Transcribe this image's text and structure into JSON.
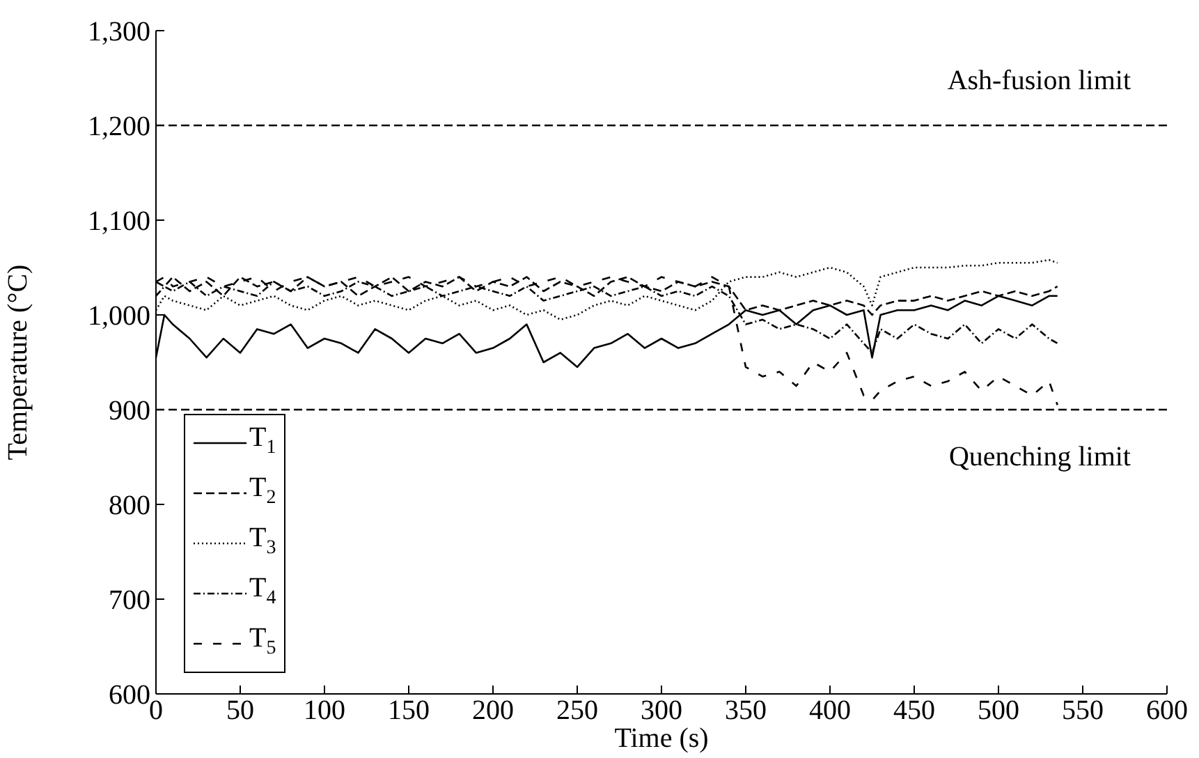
{
  "chart_data": {
    "type": "line",
    "xlabel": "Time (s)",
    "ylabel": "Temperature (°C)",
    "x": [
      0,
      5,
      10,
      20,
      30,
      40,
      50,
      60,
      70,
      80,
      90,
      100,
      110,
      120,
      130,
      140,
      150,
      160,
      170,
      180,
      190,
      200,
      210,
      220,
      230,
      240,
      250,
      260,
      270,
      280,
      290,
      300,
      310,
      320,
      330,
      340,
      350,
      360,
      370,
      380,
      390,
      400,
      410,
      420,
      425,
      430,
      440,
      450,
      460,
      470,
      480,
      490,
      500,
      510,
      520,
      530,
      535
    ],
    "series": [
      {
        "name": "T$_{1}$",
        "color": "#000000",
        "line_style": "solid",
        "values": [
          955,
          1000,
          990,
          975,
          955,
          975,
          960,
          985,
          980,
          990,
          965,
          975,
          970,
          960,
          985,
          975,
          960,
          975,
          970,
          980,
          960,
          965,
          975,
          990,
          950,
          960,
          945,
          965,
          970,
          980,
          965,
          975,
          965,
          970,
          980,
          990,
          1005,
          1000,
          1005,
          990,
          1005,
          1010,
          1000,
          1005,
          955,
          1000,
          1005,
          1005,
          1010,
          1005,
          1015,
          1010,
          1020,
          1015,
          1010,
          1020,
          1020
        ]
      },
      {
        "name": "T$_{2}$",
        "color": "#000000",
        "line_style": "dashed",
        "values": [
          1035,
          1030,
          1040,
          1025,
          1035,
          1020,
          1040,
          1030,
          1035,
          1025,
          1040,
          1030,
          1035,
          1020,
          1030,
          1040,
          1025,
          1035,
          1030,
          1040,
          1025,
          1035,
          1030,
          1040,
          1025,
          1035,
          1030,
          1020,
          1035,
          1040,
          1030,
          1025,
          1035,
          1030,
          1035,
          1030,
          1005,
          1010,
          1005,
          1010,
          1015,
          1010,
          1015,
          1010,
          1000,
          1010,
          1015,
          1015,
          1020,
          1015,
          1020,
          1025,
          1020,
          1025,
          1020,
          1025,
          1030
        ]
      },
      {
        "name": "T$_{3}$",
        "color": "#000000",
        "line_style": "dotted",
        "values": [
          1005,
          1020,
          1015,
          1010,
          1005,
          1020,
          1010,
          1015,
          1020,
          1010,
          1005,
          1015,
          1020,
          1010,
          1015,
          1010,
          1005,
          1015,
          1020,
          1010,
          1015,
          1005,
          1010,
          1000,
          1005,
          995,
          1000,
          1010,
          1015,
          1010,
          1020,
          1015,
          1010,
          1005,
          1015,
          1035,
          1040,
          1040,
          1045,
          1040,
          1045,
          1050,
          1045,
          1030,
          1010,
          1040,
          1045,
          1050,
          1050,
          1050,
          1052,
          1052,
          1055,
          1055,
          1055,
          1058,
          1055
        ]
      },
      {
        "name": "T$_{4}$",
        "color": "#000000",
        "line_style": "dashdot",
        "values": [
          1020,
          1030,
          1025,
          1035,
          1020,
          1030,
          1025,
          1020,
          1035,
          1025,
          1030,
          1020,
          1025,
          1035,
          1030,
          1020,
          1025,
          1030,
          1020,
          1025,
          1030,
          1025,
          1020,
          1030,
          1015,
          1020,
          1025,
          1030,
          1020,
          1025,
          1030,
          1020,
          1025,
          1020,
          1030,
          1020,
          990,
          995,
          985,
          990,
          985,
          975,
          990,
          970,
          960,
          985,
          975,
          990,
          980,
          975,
          990,
          970,
          985,
          975,
          990,
          975,
          970
        ]
      },
      {
        "name": "T$_{5}$",
        "color": "#000000",
        "line_style": "loosely dashed",
        "values": [
          1035,
          1040,
          1030,
          1035,
          1040,
          1030,
          1035,
          1040,
          1025,
          1035,
          1040,
          1030,
          1035,
          1040,
          1030,
          1035,
          1040,
          1030,
          1035,
          1040,
          1030,
          1035,
          1040,
          1030,
          1035,
          1040,
          1030,
          1035,
          1040,
          1035,
          1030,
          1040,
          1035,
          1030,
          1040,
          1030,
          945,
          935,
          940,
          925,
          950,
          940,
          960,
          915,
          910,
          920,
          930,
          935,
          925,
          930,
          940,
          920,
          935,
          925,
          915,
          930,
          905
        ]
      }
    ],
    "xlim": [
      0,
      600
    ],
    "xticks": [
      0,
      50,
      100,
      150,
      200,
      250,
      300,
      350,
      400,
      450,
      500,
      550,
      600
    ],
    "ylim": [
      600,
      1300
    ],
    "yticks": [
      600,
      700,
      800,
      900,
      {
        "value": 1000,
        "label": "1,000"
      },
      {
        "value": 1100,
        "label": "1,100"
      },
      {
        "value": 1200,
        "label": "1,200"
      },
      {
        "value": 1300,
        "label": "1,300"
      }
    ],
    "ref_lines": [
      {
        "axis": "y",
        "value": 1200,
        "label": "Ash-fusion limit",
        "line_style": "dashed",
        "color": "#000000"
      },
      {
        "axis": "y",
        "value": 900,
        "label": "Quenching limit",
        "line_style": "dashed",
        "color": "#000000"
      }
    ],
    "legend": "bottom left",
    "grid": false,
    "marker": "none"
  }
}
